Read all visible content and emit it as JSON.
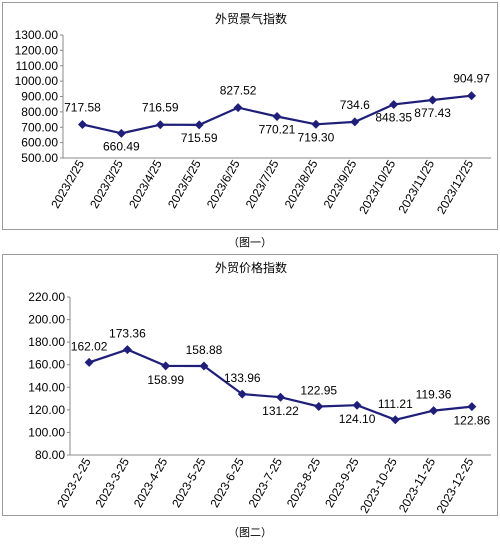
{
  "chart_data": [
    {
      "type": "line",
      "title": "外贸景气指数",
      "caption": "（图一）",
      "categories": [
        "2023/2/25",
        "2023/3/25",
        "2023/4/25",
        "2023/5/25",
        "2023/6/25",
        "2023/7/25",
        "2023/8/25",
        "2023/9/25",
        "2023/10/25",
        "2023/11/25",
        "2023/12/25"
      ],
      "values": [
        717.58,
        660.49,
        716.59,
        715.59,
        827.52,
        770.21,
        719.3,
        734.6,
        848.35,
        877.43,
        904.97
      ],
      "value_labels": [
        "717.58",
        "660.49",
        "716.59",
        "715.59",
        "827.52",
        "770.21",
        "719.30",
        "734.6",
        "848.35",
        "877.43",
        "904.97"
      ],
      "y_ticks": [
        "1300.00",
        "1200.00",
        "1100.00",
        "1000.00",
        "900.00",
        "800.00",
        "700.00",
        "600.00",
        "500.00"
      ],
      "ylim": [
        500,
        1300
      ],
      "grid": false,
      "line_color": "#1f1f7a"
    },
    {
      "type": "line",
      "title": "外贸价格指数",
      "caption": "（图二）",
      "categories": [
        "2023-2-25",
        "2023-3-25",
        "2023-4-25",
        "2023-5-25",
        "2023-6-25",
        "2023-7-25",
        "2023-8-25",
        "2023-9-25",
        "2023-10-25",
        "2023-11-25",
        "2023-12-25"
      ],
      "values": [
        162.02,
        173.36,
        158.99,
        158.88,
        133.96,
        131.22,
        122.95,
        124.1,
        111.21,
        119.36,
        122.86
      ],
      "value_labels": [
        "162.02",
        "173.36",
        "158.99",
        "158.88",
        "133.96",
        "131.22",
        "122.95",
        "124.10",
        "111.21",
        "119.36",
        "122.86"
      ],
      "y_ticks": [
        "220.00",
        "200.00",
        "180.00",
        "160.00",
        "140.00",
        "120.00",
        "100.00",
        "80.00"
      ],
      "ylim": [
        80,
        220
      ],
      "grid": false,
      "line_color": "#1f1f7a"
    }
  ]
}
